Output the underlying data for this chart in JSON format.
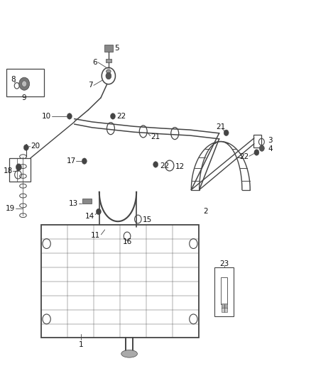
{
  "bg_color": "#ffffff",
  "line_color": "#444444",
  "label_color": "#111111",
  "label_fontsize": 7.5
}
